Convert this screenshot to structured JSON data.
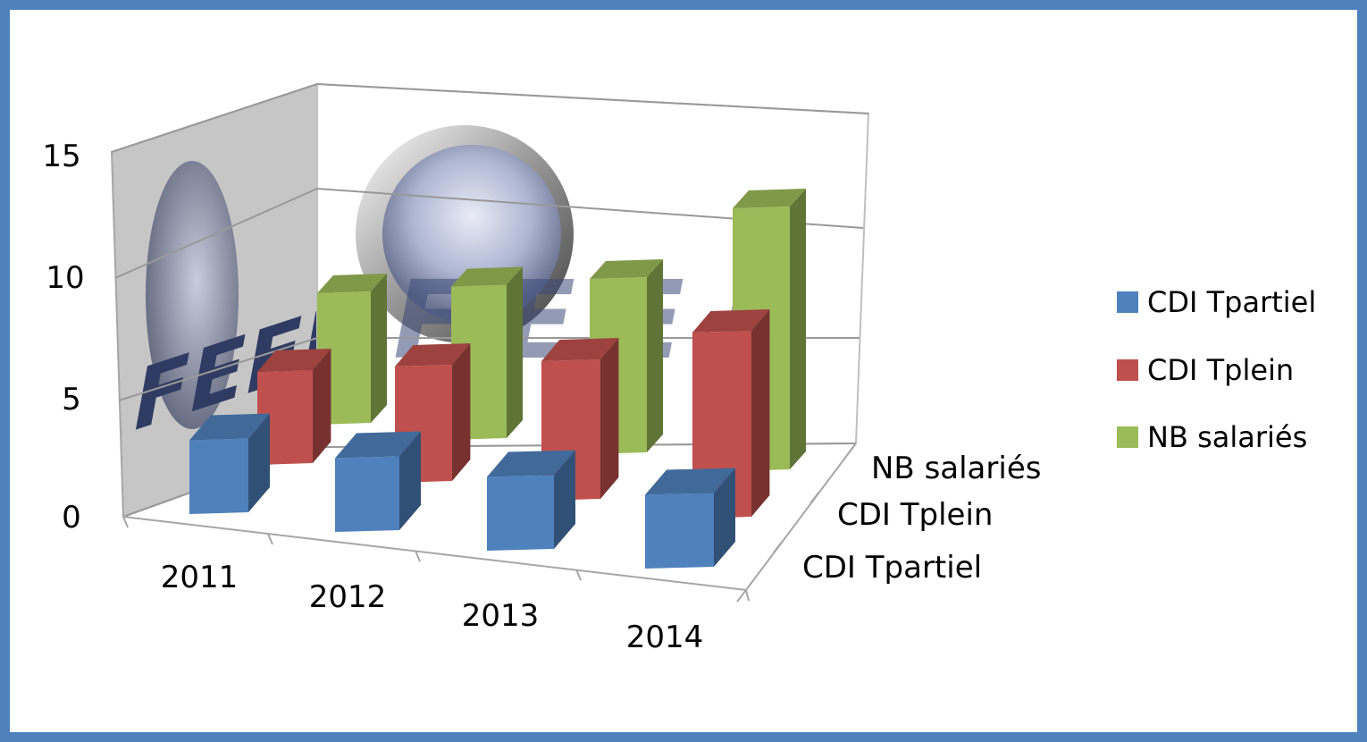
{
  "chart_data": {
    "type": "bar",
    "subtype": "3d-column",
    "title": "",
    "categories": [
      "2011",
      "2012",
      "2013",
      "2014"
    ],
    "series": [
      {
        "name": "CDI Tpartiel",
        "values": [
          3,
          3,
          3,
          3
        ],
        "color": "#4f81bd"
      },
      {
        "name": "CDI Tplein",
        "values": [
          4,
          5,
          6,
          8
        ],
        "color": "#c0504d"
      },
      {
        "name": "NB salariés",
        "values": [
          6,
          7,
          8,
          12
        ],
        "color": "#9bbb59"
      }
    ],
    "y_ticks": [
      "0",
      "5",
      "10",
      "15"
    ],
    "ylim": [
      0,
      15
    ],
    "depth_labels": [
      "NB salariés",
      "CDI Tplein",
      "CDI Tpartiel"
    ],
    "grid": true,
    "legend_position": "right",
    "frame_color": "#4f81bd",
    "watermark": {
      "text": "FEEL",
      "description": "logo watermark on chart walls"
    }
  }
}
